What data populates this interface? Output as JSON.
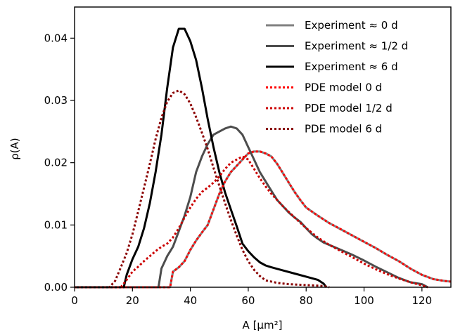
{
  "chart_data": {
    "type": "line",
    "title": "",
    "xlabel": "A [μm²]",
    "ylabel": "ρ(A)",
    "xlim": [
      0,
      130
    ],
    "ylim": [
      0,
      0.045
    ],
    "xticks": [
      "0",
      "20",
      "40",
      "60",
      "80",
      "100",
      "120"
    ],
    "yticks": [
      "0.00",
      "0.01",
      "0.02",
      "0.03",
      "0.04"
    ],
    "grid": false,
    "legend_position": "top-right",
    "series": [
      {
        "name": "Experiment ≈ 0 d",
        "color": "#808080",
        "style": "solid",
        "x": [
          0,
          33,
          34,
          36,
          38,
          40,
          42,
          44,
          46,
          48,
          50,
          52,
          54,
          56,
          58,
          60,
          62,
          64,
          66,
          68,
          70,
          72,
          74,
          76,
          78,
          80,
          84,
          88,
          92,
          96,
          100,
          104,
          108,
          112,
          116,
          120,
          124,
          128,
          130
        ],
        "y": [
          0,
          0,
          0.0025,
          0.0032,
          0.0042,
          0.006,
          0.0075,
          0.0088,
          0.01,
          0.0125,
          0.015,
          0.017,
          0.0185,
          0.0195,
          0.0205,
          0.0215,
          0.0218,
          0.0218,
          0.0215,
          0.021,
          0.0198,
          0.0183,
          0.0168,
          0.0153,
          0.014,
          0.0128,
          0.0115,
          0.0103,
          0.0093,
          0.0083,
          0.0073,
          0.0063,
          0.0052,
          0.0042,
          0.003,
          0.002,
          0.0013,
          0.001,
          0.0009
        ]
      },
      {
        "name": "Experiment ≈ 1/2 d",
        "color": "#4d4d4d",
        "style": "solid",
        "x": [
          0,
          29,
          30,
          32,
          34,
          36,
          38,
          40,
          42,
          44,
          46,
          48,
          50,
          52,
          54,
          56,
          58,
          60,
          62,
          64,
          66,
          68,
          70,
          72,
          74,
          76,
          78,
          80,
          82,
          84,
          86,
          88,
          92,
          96,
          100,
          104,
          108,
          112,
          116,
          120,
          122
        ],
        "y": [
          0,
          0,
          0.003,
          0.005,
          0.0065,
          0.009,
          0.0115,
          0.0145,
          0.0185,
          0.021,
          0.023,
          0.0245,
          0.025,
          0.0255,
          0.0258,
          0.0255,
          0.0245,
          0.0225,
          0.0205,
          0.0185,
          0.017,
          0.0155,
          0.014,
          0.013,
          0.012,
          0.0112,
          0.0105,
          0.0095,
          0.0085,
          0.0078,
          0.0072,
          0.0068,
          0.006,
          0.0052,
          0.0043,
          0.0033,
          0.0024,
          0.0015,
          0.0008,
          0.0005,
          0
        ]
      },
      {
        "name": "Experiment ≈ 6 d",
        "color": "#000000",
        "style": "solid",
        "x": [
          0,
          17,
          18,
          20,
          22,
          24,
          26,
          28,
          30,
          32,
          34,
          36,
          38,
          40,
          42,
          44,
          46,
          48,
          50,
          52,
          54,
          56,
          58,
          60,
          62,
          64,
          66,
          68,
          72,
          76,
          80,
          84,
          86,
          87
        ],
        "y": [
          0,
          0,
          0.002,
          0.0045,
          0.0065,
          0.0095,
          0.0135,
          0.0185,
          0.0245,
          0.032,
          0.0385,
          0.0415,
          0.0415,
          0.0395,
          0.0365,
          0.032,
          0.027,
          0.0225,
          0.0185,
          0.0152,
          0.0125,
          0.0098,
          0.007,
          0.0058,
          0.0048,
          0.004,
          0.0035,
          0.0032,
          0.0027,
          0.0022,
          0.0017,
          0.0012,
          0.0006,
          0
        ]
      },
      {
        "name": "PDE model 0 d",
        "color": "#ff0000",
        "style": "dotted",
        "x": [
          0,
          33,
          34,
          36,
          38,
          40,
          42,
          44,
          46,
          48,
          50,
          52,
          54,
          56,
          58,
          60,
          62,
          64,
          66,
          68,
          70,
          72,
          74,
          76,
          78,
          80,
          84,
          88,
          92,
          96,
          100,
          104,
          108,
          112,
          116,
          120,
          124,
          128,
          130
        ],
        "y": [
          0,
          0,
          0.0025,
          0.0032,
          0.0042,
          0.006,
          0.0075,
          0.0088,
          0.01,
          0.0125,
          0.015,
          0.017,
          0.0185,
          0.0195,
          0.0205,
          0.0215,
          0.0218,
          0.0218,
          0.0215,
          0.021,
          0.0198,
          0.0183,
          0.0168,
          0.0153,
          0.014,
          0.0128,
          0.0115,
          0.0103,
          0.0093,
          0.0083,
          0.0073,
          0.0063,
          0.0052,
          0.0042,
          0.003,
          0.002,
          0.0013,
          0.001,
          0.0009
        ]
      },
      {
        "name": "PDE model 1/2 d",
        "color": "#cc0000",
        "style": "dotted",
        "x": [
          0,
          16,
          18,
          20,
          22,
          24,
          26,
          28,
          30,
          32,
          34,
          36,
          38,
          40,
          42,
          44,
          46,
          48,
          50,
          52,
          54,
          56,
          58,
          60,
          62,
          64,
          66,
          68,
          72,
          76,
          80,
          84,
          88,
          92,
          96,
          100,
          104,
          108,
          112,
          116,
          120,
          122
        ],
        "y": [
          0,
          0,
          0.0012,
          0.0025,
          0.0033,
          0.0042,
          0.005,
          0.0058,
          0.0065,
          0.007,
          0.008,
          0.0095,
          0.0112,
          0.0128,
          0.0142,
          0.0153,
          0.016,
          0.0168,
          0.0178,
          0.019,
          0.02,
          0.0205,
          0.021,
          0.0205,
          0.019,
          0.0175,
          0.0162,
          0.015,
          0.013,
          0.0112,
          0.0095,
          0.008,
          0.0068,
          0.0058,
          0.0048,
          0.0038,
          0.0029,
          0.0021,
          0.0014,
          0.0008,
          0.0003,
          0
        ]
      },
      {
        "name": "PDE model 6 d",
        "color": "#8b0000",
        "style": "dotted",
        "x": [
          0,
          12,
          14,
          16,
          18,
          20,
          22,
          24,
          26,
          28,
          30,
          32,
          34,
          36,
          38,
          40,
          42,
          44,
          46,
          48,
          50,
          52,
          54,
          56,
          58,
          60,
          62,
          64,
          66,
          70,
          74,
          78,
          82,
          86,
          88
        ],
        "y": [
          0,
          0,
          0.001,
          0.0032,
          0.0055,
          0.0085,
          0.0122,
          0.016,
          0.0198,
          0.0238,
          0.0272,
          0.0298,
          0.0312,
          0.0316,
          0.031,
          0.0295,
          0.0273,
          0.0248,
          0.0222,
          0.0192,
          0.0163,
          0.0135,
          0.0108,
          0.0083,
          0.006,
          0.0042,
          0.0028,
          0.0018,
          0.0011,
          0.0007,
          0.0005,
          0.0004,
          0.0003,
          0.0002,
          0
        ]
      }
    ]
  }
}
